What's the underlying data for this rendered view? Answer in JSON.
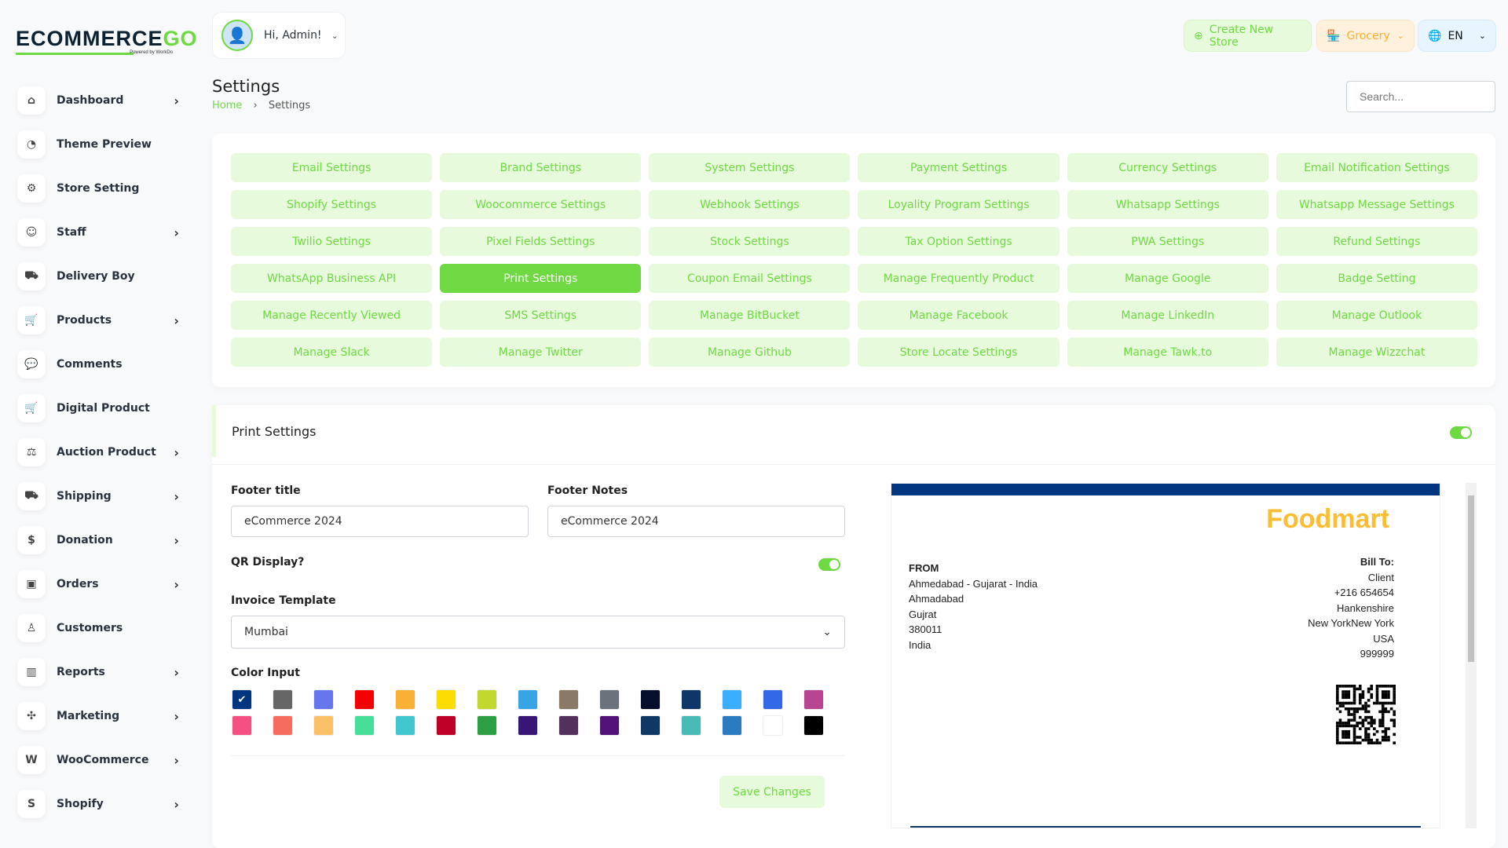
{
  "brand": {
    "logo_text": "ECOMMERCE",
    "logo_accent": "GO",
    "powered": "Powered by WorkDo"
  },
  "user": {
    "greeting": "Hi, Admin!"
  },
  "header": {
    "create_store": "Create New Store",
    "store_select": "Grocery",
    "language": "EN",
    "search_placeholder": "Search..."
  },
  "page": {
    "title": "Settings",
    "breadcrumb": [
      "Home",
      "Settings"
    ]
  },
  "sidebar": {
    "items": [
      {
        "label": "Dashboard",
        "icon": "home-icon",
        "glyph": "⌂",
        "chevron": true
      },
      {
        "label": "Theme Preview",
        "icon": "theme-icon",
        "glyph": "◔",
        "chevron": false
      },
      {
        "label": "Store Setting",
        "icon": "gear-icon",
        "glyph": "⚙",
        "chevron": false
      },
      {
        "label": "Staff",
        "icon": "users-icon",
        "glyph": "☺",
        "chevron": true
      },
      {
        "label": "Delivery Boy",
        "icon": "truck-icon",
        "glyph": "⛟",
        "chevron": false
      },
      {
        "label": "Products",
        "icon": "cart-icon",
        "glyph": "🛒",
        "chevron": true
      },
      {
        "label": "Comments",
        "icon": "comment-icon",
        "glyph": "💬",
        "chevron": false
      },
      {
        "label": "Digital Product",
        "icon": "cart-icon",
        "glyph": "🛒",
        "chevron": false
      },
      {
        "label": "Auction Product",
        "icon": "auction-icon",
        "glyph": "⚖",
        "chevron": true
      },
      {
        "label": "Shipping",
        "icon": "truck-icon",
        "glyph": "⛟",
        "chevron": true
      },
      {
        "label": "Donation",
        "icon": "coin-icon",
        "glyph": "$",
        "chevron": true
      },
      {
        "label": "Orders",
        "icon": "briefcase-icon",
        "glyph": "▣",
        "chevron": true
      },
      {
        "label": "Customers",
        "icon": "user-icon",
        "glyph": "♙",
        "chevron": false
      },
      {
        "label": "Reports",
        "icon": "chart-icon",
        "glyph": "▥",
        "chevron": true
      },
      {
        "label": "Marketing",
        "icon": "marketing-icon",
        "glyph": "✣",
        "chevron": true
      },
      {
        "label": "WooCommerce",
        "icon": "woocommerce-icon",
        "glyph": "W",
        "chevron": true
      },
      {
        "label": "Shopify",
        "icon": "shopify-icon",
        "glyph": "S",
        "chevron": true
      }
    ]
  },
  "settings_buttons": [
    "Email Settings",
    "Brand Settings",
    "System Settings",
    "Payment Settings",
    "Currency Settings",
    "Email Notification Settings",
    "Shopify Settings",
    "Woocommerce Settings",
    "Webhook Settings",
    "Loyality Program Settings",
    "Whatsapp Settings",
    "Whatsapp Message Settings",
    "Twilio Settings",
    "Pixel Fields Settings",
    "Stock Settings",
    "Tax Option Settings",
    "PWA Settings",
    "Refund Settings",
    "WhatsApp Business API",
    "Print Settings",
    "Coupon Email Settings",
    "Manage Frequently Product",
    "Manage Google",
    "Badge Setting",
    "Manage Recently Viewed",
    "SMS Settings",
    "Manage BitBucket",
    "Manage Facebook",
    "Manage LinkedIn",
    "Manage Outlook",
    "Manage Slack",
    "Manage Twitter",
    "Manage Github",
    "Store Locate Settings",
    "Manage Tawk.to",
    "Manage Wizzchat"
  ],
  "active_setting": "Print Settings",
  "print": {
    "title": "Print Settings",
    "enabled": true,
    "footer_title_label": "Footer title",
    "footer_title": "eCommerce 2024",
    "footer_notes_label": "Footer Notes",
    "footer_notes": "eCommerce 2024",
    "qr_label": "QR Display?",
    "qr_enabled": true,
    "template_label": "Invoice Template",
    "template": "Mumbai",
    "color_label": "Color Input",
    "colors": [
      "#003580",
      "#666666",
      "#6676ef",
      "#f50102",
      "#f9b034",
      "#fbdd03",
      "#c1d82f",
      "#37a4e4",
      "#8a7966",
      "#6a737b",
      "#050f2c",
      "#0e3666",
      "#3baeff",
      "#3368e6",
      "#b84592",
      "#f64f81",
      "#f66c5f",
      "#fac168",
      "#46de98",
      "#40c7d0",
      "#be0028",
      "#2f9f45",
      "#371676",
      "#52325d",
      "#511378",
      "#0f3866",
      "#48bbb5",
      "#2c7bc0",
      "#ffffff",
      "#000000"
    ],
    "selected_color": "#003580",
    "save": "Save Changes"
  },
  "invoice": {
    "brand": "Foodmart",
    "from_label": "FROM",
    "from_lines": [
      "Ahmedabad - Gujarat - India",
      "Ahmadabad",
      "Gujrat",
      "380011",
      "India"
    ],
    "bill_label": "Bill To:",
    "bill_lines": [
      "Client",
      "+216 654654",
      "Hankenshire",
      "New YorkNew York",
      "USA",
      "999999"
    ]
  },
  "colors": {
    "accent": "#6fd943",
    "accent_light": "#e7fadc",
    "invoice_bar": "#003580",
    "invoice_brand": "#fbbd33"
  }
}
